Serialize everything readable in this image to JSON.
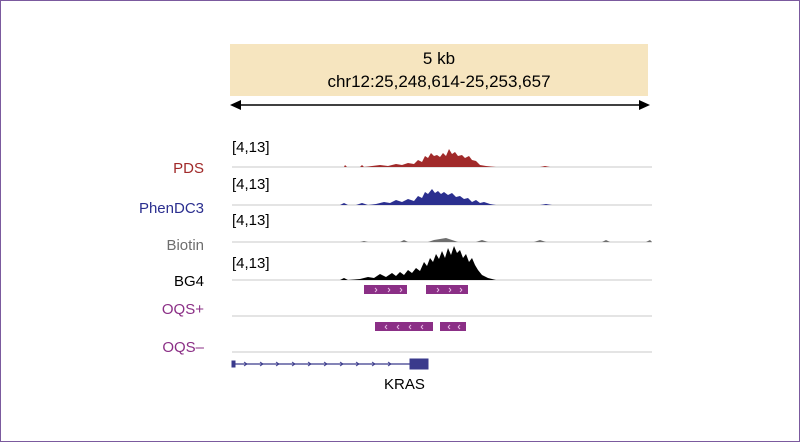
{
  "header": {
    "scale": "5 kb",
    "locus": "chr12:25,248,614-25,253,657"
  },
  "colors": {
    "pds": "#a12a2a",
    "phendc3": "#2b2f8f",
    "biotin": "#6e6e6e",
    "bg4": "#000000",
    "oqs": "#8b2f86",
    "gene": "#3a3a8c",
    "header_bg": "#f6e5bf"
  },
  "tracks": [
    {
      "key": "pds",
      "label": "PDS",
      "range": "[4,13]"
    },
    {
      "key": "phendc3",
      "label": "PhenDC3",
      "range": "[4,13]"
    },
    {
      "key": "biotin",
      "label": "Biotin",
      "range": "[4,13]"
    },
    {
      "key": "bg4",
      "label": "BG4",
      "range": "[4,13]"
    }
  ],
  "oqs_tracks": [
    {
      "key": "oqs_plus",
      "label": "OQS+"
    },
    {
      "key": "oqs_minus",
      "label": "OQS–"
    }
  ],
  "gene": {
    "name": "KRAS",
    "icon": "gene-model-icon"
  }
}
